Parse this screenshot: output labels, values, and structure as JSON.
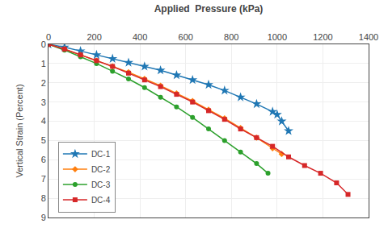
{
  "chart_data": {
    "type": "line",
    "xlabel": "Applied  Pressure (kPa)",
    "ylabel": "Vertical Strain (Percent)",
    "xlim": [
      0,
      1400
    ],
    "ylim": [
      9,
      0
    ],
    "xticks": [
      0,
      200,
      400,
      600,
      800,
      1000,
      1200,
      1400
    ],
    "yticks": [
      0,
      1,
      2,
      3,
      4,
      5,
      6,
      7,
      8,
      9
    ],
    "grid": true,
    "legend": "lower left",
    "series": [
      {
        "name": "DC-1",
        "marker": "star",
        "x": [
          0,
          70,
          140,
          210,
          280,
          350,
          420,
          490,
          560,
          630,
          700,
          770,
          840,
          910,
          980,
          1000,
          1020,
          1050
        ],
        "values": [
          0,
          0.15,
          0.35,
          0.55,
          0.75,
          0.95,
          1.15,
          1.35,
          1.6,
          1.85,
          2.1,
          2.4,
          2.75,
          3.1,
          3.5,
          3.65,
          4.0,
          4.5
        ]
      },
      {
        "name": "DC-2",
        "marker": "diamond",
        "x": [
          0,
          70,
          140,
          210,
          280,
          350,
          420,
          490,
          560,
          630,
          700,
          770,
          840,
          910,
          980,
          1020
        ],
        "values": [
          0,
          0.25,
          0.55,
          0.85,
          1.15,
          1.45,
          1.8,
          2.15,
          2.55,
          2.95,
          3.4,
          3.85,
          4.35,
          4.85,
          5.4,
          5.7
        ]
      },
      {
        "name": "DC-3",
        "marker": "circle",
        "x": [
          0,
          70,
          140,
          210,
          280,
          350,
          420,
          490,
          560,
          630,
          700,
          770,
          840,
          910,
          960
        ],
        "values": [
          0,
          0.3,
          0.65,
          1.0,
          1.4,
          1.8,
          2.25,
          2.75,
          3.25,
          3.8,
          4.4,
          5.0,
          5.6,
          6.2,
          6.7
        ]
      },
      {
        "name": "DC-4",
        "marker": "square",
        "x": [
          0,
          70,
          140,
          210,
          280,
          350,
          420,
          490,
          560,
          630,
          700,
          770,
          840,
          910,
          980,
          1050,
          1120,
          1190,
          1260,
          1310
        ],
        "values": [
          0,
          0.25,
          0.55,
          0.85,
          1.15,
          1.5,
          1.85,
          2.2,
          2.6,
          3.0,
          3.45,
          3.9,
          4.4,
          4.85,
          5.3,
          5.85,
          6.3,
          6.7,
          7.2,
          7.8
        ]
      }
    ]
  }
}
